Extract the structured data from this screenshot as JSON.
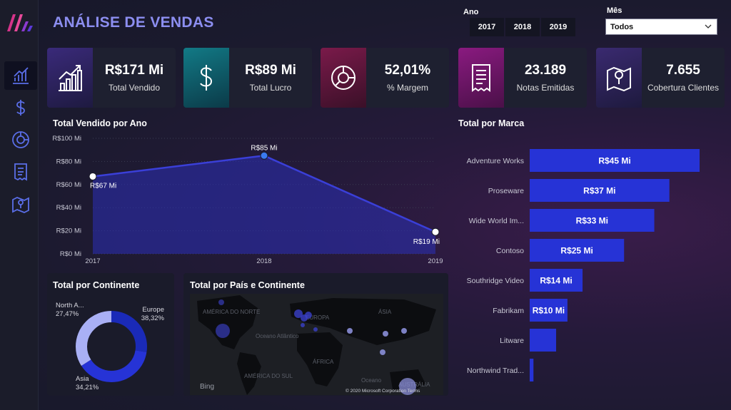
{
  "header": {
    "title": "ANÁLISE DE VENDAS",
    "ano_label": "Ano",
    "mes_label": "Mês",
    "years": [
      "2017",
      "2018",
      "2019"
    ],
    "mes_selected": "Todos"
  },
  "sidebar": {
    "items": [
      {
        "name": "chart-icon",
        "active": true
      },
      {
        "name": "dollar-icon",
        "active": false
      },
      {
        "name": "donut-icon",
        "active": false
      },
      {
        "name": "receipt-icon",
        "active": false
      },
      {
        "name": "map-icon",
        "active": false
      }
    ]
  },
  "kpis": [
    {
      "value": "R$171 Mi",
      "label": "Total Vendido",
      "icon": "growth-chart-icon",
      "accent": "#2b1f5e"
    },
    {
      "value": "R$89 Mi",
      "label": "Total Lucro",
      "icon": "dollar-icon",
      "accent": "#0e5a6a"
    },
    {
      "value": "52,01%",
      "label": "% Margem",
      "icon": "donut-icon",
      "accent": "#5a1238"
    },
    {
      "value": "23.189",
      "label": "Notas Emitidas",
      "icon": "receipt-icon",
      "accent": "#6a1260"
    },
    {
      "value": "7.655",
      "label": "Cobertura Clientes",
      "icon": "map-icon",
      "accent": "#2e1f5a"
    }
  ],
  "sections": {
    "vendido_ano": "Total Vendido por Ano",
    "marca": "Total por Marca",
    "continente": "Total por Continente",
    "pais": "Total por País e Continente"
  },
  "chart_data": [
    {
      "type": "area",
      "title": "Total Vendido por Ano",
      "x": [
        "2017",
        "2018",
        "2019"
      ],
      "values": [
        67,
        85,
        19
      ],
      "data_labels": [
        "R$67 Mi",
        "R$85 Mi",
        "R$19 Mi"
      ],
      "ylim": [
        0,
        100
      ],
      "yticks": [
        "R$0 Mi",
        "R$20 Mi",
        "R$40 Mi",
        "R$60 Mi",
        "R$80 Mi",
        "R$100 Mi"
      ],
      "grid": true,
      "color": "#3a3fd8"
    },
    {
      "type": "bar",
      "orientation": "horizontal",
      "title": "Total por Marca",
      "categories": [
        "Adventure Works",
        "Proseware",
        "Wide World Im...",
        "Contoso",
        "Southridge Video",
        "Fabrikam",
        "Litware",
        "Northwind Trad..."
      ],
      "values": [
        45,
        37,
        33,
        25,
        14,
        10,
        7,
        1
      ],
      "data_labels": [
        "R$45 Mi",
        "R$37 Mi",
        "R$33 Mi",
        "R$25 Mi",
        "R$14 Mi",
        "R$10 Mi",
        "",
        ""
      ],
      "color": "#2633d6"
    },
    {
      "type": "pie",
      "variant": "donut",
      "title": "Total por Continente",
      "categories": [
        "North A...",
        "Europe",
        "Asia"
      ],
      "values": [
        27.47,
        38.32,
        34.21
      ],
      "data_labels": [
        "27,47%",
        "38,32%",
        "34,21%"
      ],
      "colors": [
        "#1a2ab8",
        "#2633d6",
        "#a9b0f5"
      ]
    }
  ],
  "map": {
    "labels": [
      "AMÉRICA DO NORTE",
      "EUROPA",
      "ÁSIA",
      "Oceano Atlântico",
      "ÁFRICA",
      "AMÉRICA DO SUL",
      "Oceano",
      "AUSTRÁLIA"
    ],
    "attribution": "© 2020 Microsoft Corporation  Terms",
    "bing": "Bing"
  }
}
